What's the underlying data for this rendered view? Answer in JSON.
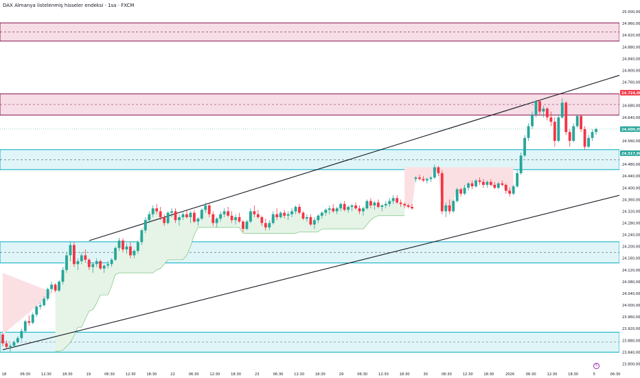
{
  "header": {
    "title": "DAX Almanya listelenmiş hisseler endeksi · 1sa · FXCM"
  },
  "event_marker": "5",
  "colors": {
    "up": "#26a69a",
    "down": "#f23645",
    "zone_red": "#880e4f",
    "zone_red_fill": "#f3d1de",
    "zone_teal": "#00acc1",
    "zone_teal_fill": "#d5f1f5",
    "channel": "#131722",
    "cloud_green": "#e6f4e7",
    "cloud_red": "#fbe0e3",
    "stop_green": "#66bb6a"
  },
  "chart_data": {
    "type": "candlestick",
    "title": "DAX Almanya listelenmiş hisseler endeksi · 1sa · FXCM",
    "y_axis": {
      "range": [
        23780,
        25040
      ],
      "ticks": [
        "25.000,00",
        "24.960,00",
        "24.920,00",
        "24.880,00",
        "24.840,00",
        "24.800,00",
        "24.760,00",
        "24.720,00",
        "24.680,00",
        "24.640,00",
        "24.600,00",
        "24.560,00",
        "24.520,00",
        "24.480,00",
        "24.440,00",
        "24.400,00",
        "24.360,00",
        "24.320,00",
        "24.280,00",
        "24.240,00",
        "24.200,00",
        "24.160,00",
        "24.120,00",
        "24.080,00",
        "24.040,00",
        "24.000,00",
        "23.960,00",
        "23.920,00",
        "23.880,00",
        "23.840,00",
        "23.800,00"
      ],
      "price_tags": [
        {
          "label": "24.724,00",
          "value": 24724,
          "color": "#f23645"
        },
        {
          "label": "24.600,09",
          "value": 24600,
          "color": "#26a69a"
        },
        {
          "label": "24.517,98",
          "value": 24518,
          "color": "#26a69a"
        }
      ]
    },
    "x_axis": {
      "ticks": [
        "18",
        "06:30",
        "12:30",
        "18:30",
        "19",
        "06:30",
        "12:30",
        "18:30",
        "22",
        "06:30",
        "12:30",
        "18:30",
        "23",
        "06:30",
        "12:30",
        "18:30",
        "29",
        "06:30",
        "12:30",
        "18:30",
        "30",
        "06:30",
        "12:30",
        "18:30",
        "2026",
        "06:30",
        "12:30",
        "18:30",
        "5",
        "06:30"
      ]
    },
    "zones": [
      {
        "type": "resistance",
        "top": 24962,
        "bottom": 24900,
        "mid": 24931
      },
      {
        "type": "resistance",
        "top": 24720,
        "bottom": 24648,
        "mid": 24684
      },
      {
        "type": "support",
        "top": 24530,
        "bottom": 24462,
        "mid": 24496
      },
      {
        "type": "support",
        "top": 24216,
        "bottom": 24144,
        "mid": 24180
      },
      {
        "type": "support",
        "top": 23908,
        "bottom": 23840,
        "mid": 23874
      }
    ],
    "channel": {
      "upper": [
        {
          "i": 23,
          "v": 24220
        },
        {
          "i": 209,
          "v": 24962
        }
      ],
      "lower": [
        {
          "i": 0,
          "v": 23848
        },
        {
          "i": 209,
          "v": 24518
        }
      ]
    },
    "candles": [
      [
        23900,
        23905,
        23860,
        23870
      ],
      [
        23870,
        23880,
        23850,
        23858
      ],
      [
        23858,
        23870,
        23842,
        23862
      ],
      [
        23862,
        23880,
        23855,
        23874
      ],
      [
        23874,
        23895,
        23870,
        23888
      ],
      [
        23888,
        23920,
        23880,
        23912
      ],
      [
        23912,
        23950,
        23905,
        23945
      ],
      [
        23945,
        23965,
        23930,
        23940
      ],
      [
        23940,
        23975,
        23935,
        23968
      ],
      [
        23968,
        24000,
        23960,
        23995
      ],
      [
        23995,
        24010,
        23985,
        24000
      ],
      [
        24000,
        24030,
        23995,
        24022
      ],
      [
        24022,
        24060,
        24015,
        24055
      ],
      [
        24055,
        24080,
        24045,
        24070
      ],
      [
        24070,
        24075,
        24045,
        24050
      ],
      [
        24050,
        24085,
        24045,
        24080
      ],
      [
        24080,
        24130,
        24070,
        24120
      ],
      [
        24120,
        24180,
        24110,
        24170
      ],
      [
        24170,
        24218,
        24150,
        24205
      ],
      [
        24205,
        24215,
        24130,
        24140
      ],
      [
        24140,
        24160,
        24120,
        24150
      ],
      [
        24150,
        24180,
        24140,
        24170
      ],
      [
        24170,
        24190,
        24145,
        24155
      ],
      [
        24155,
        24160,
        24120,
        24130
      ],
      [
        24130,
        24145,
        24110,
        24140
      ],
      [
        24140,
        24160,
        24130,
        24150
      ],
      [
        24150,
        24155,
        24120,
        24125
      ],
      [
        24125,
        24140,
        24110,
        24135
      ],
      [
        24135,
        24150,
        24125,
        24140
      ],
      [
        24140,
        24160,
        24130,
        24155
      ],
      [
        24155,
        24200,
        24150,
        24195
      ],
      [
        24195,
        24230,
        24185,
        24220
      ],
      [
        24220,
        24228,
        24180,
        24190
      ],
      [
        24190,
        24210,
        24175,
        24200
      ],
      [
        24200,
        24215,
        24160,
        24170
      ],
      [
        24170,
        24190,
        24160,
        24185
      ],
      [
        24185,
        24220,
        24175,
        24215
      ],
      [
        24215,
        24260,
        24205,
        24255
      ],
      [
        24255,
        24300,
        24245,
        24290
      ],
      [
        24290,
        24320,
        24280,
        24310
      ],
      [
        24310,
        24340,
        24300,
        24330
      ],
      [
        24330,
        24345,
        24310,
        24320
      ],
      [
        24320,
        24335,
        24290,
        24300
      ],
      [
        24300,
        24310,
        24270,
        24280
      ],
      [
        24280,
        24320,
        24275,
        24315
      ],
      [
        24315,
        24330,
        24300,
        24320
      ],
      [
        24320,
        24330,
        24280,
        24290
      ],
      [
        24290,
        24310,
        24270,
        24300
      ],
      [
        24300,
        24320,
        24290,
        24310
      ],
      [
        24310,
        24325,
        24295,
        24300
      ],
      [
        24300,
        24320,
        24280,
        24315
      ],
      [
        24315,
        24325,
        24280,
        24285
      ],
      [
        24285,
        24300,
        24270,
        24295
      ],
      [
        24295,
        24330,
        24290,
        24325
      ],
      [
        24325,
        24350,
        24315,
        24340
      ],
      [
        24340,
        24345,
        24300,
        24310
      ],
      [
        24310,
        24320,
        24270,
        24280
      ],
      [
        24280,
        24300,
        24265,
        24295
      ],
      [
        24295,
        24320,
        24285,
        24310
      ],
      [
        24310,
        24330,
        24300,
        24320
      ],
      [
        24320,
        24335,
        24300,
        24305
      ],
      [
        24305,
        24320,
        24280,
        24290
      ],
      [
        24290,
        24310,
        24275,
        24300
      ],
      [
        24300,
        24315,
        24280,
        24285
      ],
      [
        24285,
        24290,
        24250,
        24260
      ],
      [
        24260,
        24290,
        24255,
        24285
      ],
      [
        24285,
        24330,
        24280,
        24320
      ],
      [
        24320,
        24340,
        24300,
        24310
      ],
      [
        24310,
        24325,
        24295,
        24300
      ],
      [
        24300,
        24305,
        24270,
        24280
      ],
      [
        24280,
        24295,
        24255,
        24265
      ],
      [
        24265,
        24290,
        24255,
        24280
      ],
      [
        24280,
        24320,
        24275,
        24310
      ],
      [
        24310,
        24330,
        24290,
        24300
      ],
      [
        24300,
        24320,
        24295,
        24315
      ],
      [
        24315,
        24325,
        24295,
        24305
      ],
      [
        24305,
        24320,
        24290,
        24310
      ],
      [
        24310,
        24330,
        24300,
        24320
      ],
      [
        24320,
        24340,
        24310,
        24335
      ],
      [
        24335,
        24345,
        24310,
        24315
      ],
      [
        24315,
        24320,
        24290,
        24295
      ],
      [
        24295,
        24310,
        24285,
        24300
      ],
      [
        24300,
        24310,
        24270,
        24275
      ],
      [
        24275,
        24300,
        24260,
        24290
      ],
      [
        24290,
        24310,
        24280,
        24305
      ],
      [
        24305,
        24320,
        24295,
        24315
      ],
      [
        24315,
        24330,
        24305,
        24325
      ],
      [
        24325,
        24340,
        24310,
        24330
      ],
      [
        24330,
        24345,
        24315,
        24320
      ],
      [
        24320,
        24335,
        24310,
        24330
      ],
      [
        24330,
        24350,
        24320,
        24345
      ],
      [
        24345,
        24355,
        24320,
        24325
      ],
      [
        24325,
        24340,
        24315,
        24335
      ],
      [
        24335,
        24345,
        24320,
        24340
      ],
      [
        24340,
        24350,
        24325,
        24330
      ],
      [
        24330,
        24340,
        24310,
        24320
      ],
      [
        24320,
        24335,
        24305,
        24330
      ],
      [
        24330,
        24360,
        24325,
        24355
      ],
      [
        24355,
        24365,
        24330,
        24340
      ],
      [
        24340,
        24355,
        24325,
        24350
      ],
      [
        24350,
        24360,
        24330,
        24335
      ],
      [
        24335,
        24345,
        24320,
        24340
      ],
      [
        24340,
        24355,
        24330,
        24345
      ],
      [
        24345,
        24365,
        24335,
        24355
      ],
      [
        24355,
        24375,
        24345,
        24365
      ],
      [
        24365,
        24375,
        24345,
        24350
      ],
      [
        24350,
        24360,
        24335,
        24345
      ],
      [
        24345,
        24350,
        24330,
        24340
      ],
      [
        24340,
        24345,
        24330,
        24335
      ],
      [
        24335,
        24345,
        24325,
        24330
      ],
      [
        24430,
        24440,
        24420,
        24435
      ],
      [
        24435,
        24445,
        24425,
        24430
      ],
      [
        24430,
        24440,
        24420,
        24425
      ],
      [
        24425,
        24435,
        24415,
        24430
      ],
      [
        24430,
        24440,
        24420,
        24435
      ],
      [
        24435,
        24480,
        24430,
        24470
      ],
      [
        24470,
        24475,
        24440,
        24450
      ],
      [
        24450,
        24460,
        24310,
        24320
      ],
      [
        24320,
        24350,
        24300,
        24340
      ],
      [
        24340,
        24360,
        24310,
        24320
      ],
      [
        24320,
        24360,
        24315,
        24355
      ],
      [
        24355,
        24400,
        24350,
        24395
      ],
      [
        24395,
        24400,
        24370,
        24380
      ],
      [
        24380,
        24410,
        24375,
        24400
      ],
      [
        24400,
        24420,
        24390,
        24415
      ],
      [
        24415,
        24425,
        24395,
        24405
      ],
      [
        24405,
        24430,
        24400,
        24425
      ],
      [
        24425,
        24435,
        24410,
        24420
      ],
      [
        24420,
        24430,
        24400,
        24410
      ],
      [
        24410,
        24425,
        24400,
        24420
      ],
      [
        24420,
        24430,
        24405,
        24410
      ],
      [
        24410,
        24420,
        24395,
        24400
      ],
      [
        24400,
        24420,
        24395,
        24415
      ],
      [
        24415,
        24425,
        24405,
        24410
      ],
      [
        24410,
        24415,
        24380,
        24390
      ],
      [
        24390,
        24400,
        24370,
        24380
      ],
      [
        24380,
        24410,
        24375,
        24405
      ],
      [
        24405,
        24460,
        24400,
        24450
      ],
      [
        24450,
        24520,
        24445,
        24510
      ],
      [
        24510,
        24580,
        24505,
        24570
      ],
      [
        24570,
        24620,
        24560,
        24610
      ],
      [
        24610,
        24660,
        24600,
        24650
      ],
      [
        24650,
        24700,
        24640,
        24695
      ],
      [
        24695,
        24700,
        24650,
        24660
      ],
      [
        24660,
        24680,
        24640,
        24670
      ],
      [
        24670,
        24675,
        24630,
        24640
      ],
      [
        24640,
        24660,
        24610,
        24625
      ],
      [
        24625,
        24640,
        24540,
        24560
      ],
      [
        24560,
        24650,
        24555,
        24640
      ],
      [
        24640,
        24705,
        24635,
        24690
      ],
      [
        24690,
        24695,
        24580,
        24590
      ],
      [
        24590,
        24600,
        24540,
        24560
      ],
      [
        24560,
        24620,
        24555,
        24610
      ],
      [
        24610,
        24650,
        24605,
        24645
      ],
      [
        24645,
        24650,
        24590,
        24600
      ],
      [
        24600,
        24610,
        24530,
        24540
      ],
      [
        24540,
        24580,
        24535,
        24570
      ],
      [
        24570,
        24600,
        24560,
        24590
      ],
      [
        24590,
        24605,
        24580,
        24600
      ]
    ]
  }
}
